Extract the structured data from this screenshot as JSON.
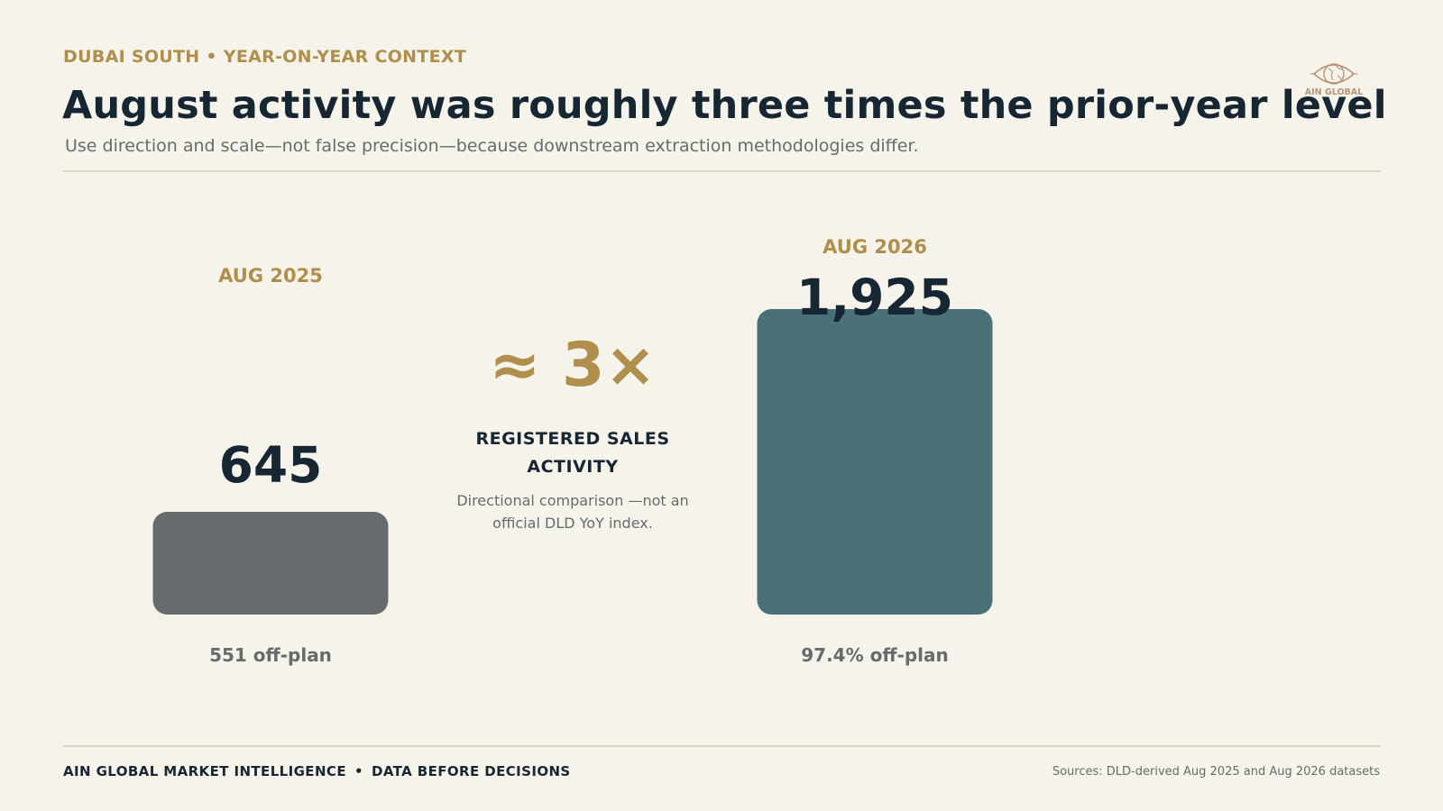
{
  "header": {
    "eyebrow": "DUBAI SOUTH • YEAR-ON-YEAR CONTEXT",
    "title": "August activity was roughly three times the prior-year level",
    "subtitle": "Use direction and scale—not false precision—because downstream extraction methodologies differ."
  },
  "logo": {
    "text": "AIN GLOBAL",
    "icon": "eye-globe-icon"
  },
  "center": {
    "multiplier": "≈ 3×",
    "metric_label": "REGISTERED SALES ACTIVITY",
    "note": "Directional comparison —not an official DLD YoY index."
  },
  "chart_data": {
    "type": "bar",
    "title": "",
    "xlabel": "",
    "ylabel": "",
    "categories": [
      "AUG 2025",
      "AUG 2026"
    ],
    "values": [
      645,
      1925
    ],
    "value_labels": [
      "645",
      "1,925"
    ],
    "bar_notes": [
      "551 off-plan",
      "97.4% off-plan"
    ],
    "ylim": [
      0,
      1925
    ],
    "grid": false,
    "legend": "none",
    "colors": [
      "#666b6d",
      "#4a7078"
    ]
  },
  "footer": {
    "brand": "AIN GLOBAL MARKET INTELLIGENCE",
    "separator": "•",
    "tagline": "DATA BEFORE DECISIONS",
    "sources": "Sources: DLD-derived Aug 2025 and Aug 2026 datasets"
  },
  "colors": {
    "background": "#f6f3ea",
    "accent_gold": "#b08f4c",
    "navy": "#172633",
    "muted": "#666b6c"
  }
}
